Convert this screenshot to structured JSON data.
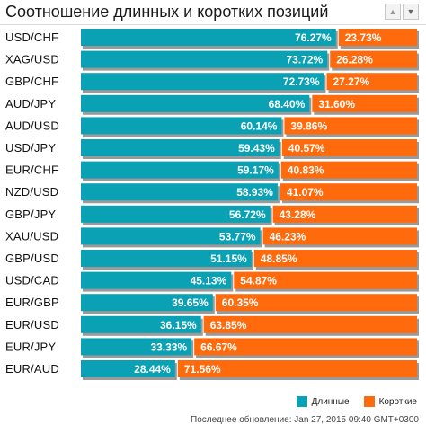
{
  "header": {
    "title": "Соотношение длинных и коротких позиций",
    "sort_up_label": "▲",
    "sort_down_label": "▼"
  },
  "colors": {
    "long": "#0aa1b5",
    "short": "#ff6a0c",
    "shadow": "#9a9a9a"
  },
  "legend": {
    "long_label": "Длинные",
    "short_label": "Короткие"
  },
  "footer": {
    "updated_text": "Последнее обновление: Jan 27, 2015 09:40 GMT+0300"
  },
  "chart_data": {
    "type": "bar",
    "orientation": "horizontal",
    "stacked": "percent",
    "categories": [
      "USD/CHF",
      "XAG/USD",
      "GBP/CHF",
      "AUD/JPY",
      "AUD/USD",
      "USD/JPY",
      "EUR/CHF",
      "NZD/USD",
      "GBP/JPY",
      "XAU/USD",
      "GBP/USD",
      "USD/CAD",
      "EUR/GBP",
      "EUR/USD",
      "EUR/JPY",
      "EUR/AUD"
    ],
    "series": [
      {
        "name": "Длинные",
        "values": [
          76.27,
          73.72,
          72.73,
          68.4,
          60.14,
          59.43,
          59.17,
          58.93,
          56.72,
          53.77,
          51.15,
          45.13,
          39.65,
          36.15,
          33.33,
          28.44
        ]
      },
      {
        "name": "Короткие",
        "values": [
          23.73,
          26.28,
          27.27,
          31.6,
          39.86,
          40.57,
          40.83,
          41.07,
          43.28,
          46.23,
          48.85,
          54.87,
          60.35,
          63.85,
          66.67,
          71.56
        ]
      }
    ],
    "value_labels": {
      "long": [
        "76.27%",
        "73.72%",
        "72.73%",
        "68.40%",
        "60.14%",
        "59.43%",
        "59.17%",
        "58.93%",
        "56.72%",
        "53.77%",
        "51.15%",
        "45.13%",
        "39.65%",
        "36.15%",
        "33.33%",
        "28.44%"
      ],
      "short": [
        "23.73%",
        "26.28%",
        "27.27%",
        "31.60%",
        "39.86%",
        "40.57%",
        "40.83%",
        "41.07%",
        "43.28%",
        "46.23%",
        "48.85%",
        "54.87%",
        "60.35%",
        "63.85%",
        "66.67%",
        "71.56%"
      ]
    },
    "xlim": [
      0,
      100
    ],
    "legend_position": "bottom-right",
    "grid": false
  }
}
